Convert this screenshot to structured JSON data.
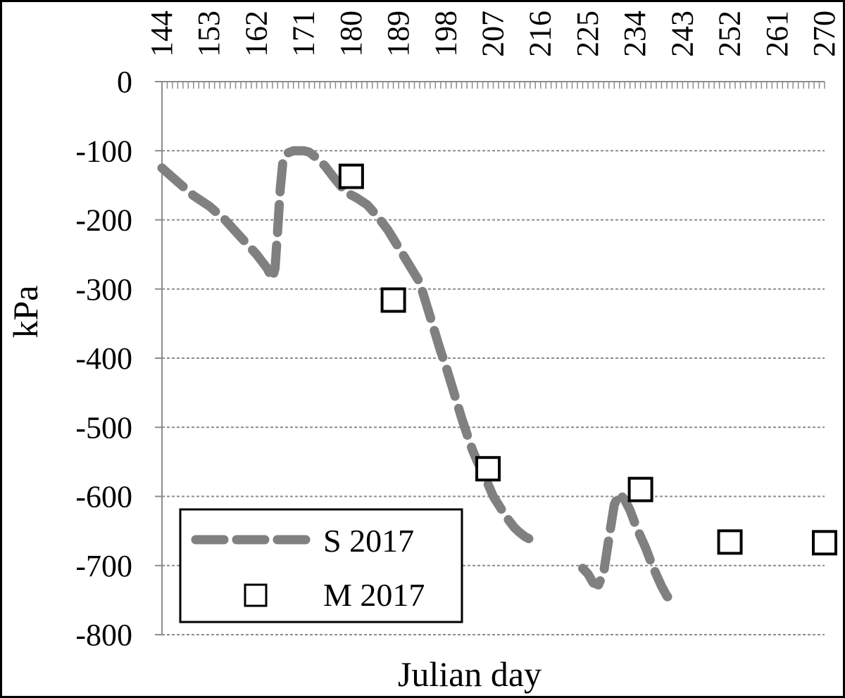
{
  "chart_data": {
    "type": "line",
    "title": "",
    "xlabel": "Julian day",
    "ylabel": "kPa",
    "x_tick_labels": [
      "144",
      "153",
      "162",
      "171",
      "180",
      "189",
      "198",
      "207",
      "216",
      "225",
      "234",
      "243",
      "252",
      "261",
      "270"
    ],
    "x_ticks": [
      144,
      153,
      162,
      171,
      180,
      189,
      198,
      207,
      216,
      225,
      234,
      243,
      252,
      261,
      270
    ],
    "xlim": [
      144,
      270
    ],
    "x_axis_position": "top",
    "y_tick_labels": [
      "0",
      "-100",
      "-200",
      "-300",
      "-400",
      "-500",
      "-600",
      "-700",
      "-800"
    ],
    "y_ticks": [
      0,
      -100,
      -200,
      -300,
      -400,
      -500,
      -600,
      -700,
      -800
    ],
    "ylim": [
      -800,
      0
    ],
    "grid": "horizontal dashed",
    "legend_position": "bottom-left",
    "series": [
      {
        "name": "S 2017",
        "kind": "dashed-line",
        "color": "#808080",
        "segments": [
          {
            "x": [
              144,
              147,
              150,
              153,
              156,
              159,
              162,
              164,
              165,
              165.5,
              166,
              166.5,
              167,
              168,
              169,
              170,
              171,
              172,
              173,
              175,
              177,
              179,
              181,
              183,
              185,
              187,
              189,
              191,
              193,
              194,
              195,
              196,
              197,
              198,
              199,
              200,
              201,
              202,
              203,
              204,
              205,
              206,
              207,
              208,
              209,
              210,
              211,
              212,
              213,
              214
            ],
            "y": [
              -125,
              -145,
              -165,
              -180,
              -200,
              -225,
              -250,
              -270,
              -285,
              -270,
              -215,
              -155,
              -115,
              -103,
              -100,
              -100,
              -100,
              -102,
              -108,
              -122,
              -142,
              -160,
              -168,
              -178,
              -195,
              -215,
              -240,
              -265,
              -290,
              -315,
              -340,
              -365,
              -390,
              -412,
              -437,
              -462,
              -487,
              -510,
              -532,
              -550,
              -565,
              -582,
              -600,
              -612,
              -624,
              -635,
              -645,
              -652,
              -658,
              -662
            ]
          },
          {
            "x": [
              224,
              225,
              226,
              227,
              228,
              229,
              230,
              231,
              232,
              233,
              234,
              235,
              236,
              237,
              238,
              239,
              240,
              241
            ],
            "y": [
              -704,
              -712,
              -725,
              -728,
              -710,
              -660,
              -612,
              -596,
              -605,
              -620,
              -640,
              -658,
              -675,
              -695,
              -713,
              -730,
              -744,
              -752
            ]
          }
        ]
      },
      {
        "name": "M 2017",
        "kind": "markers",
        "marker": "hollow-square",
        "color": "#000000",
        "x": [
          180,
          188,
          206,
          235,
          252,
          270
        ],
        "y": [
          -137,
          -316,
          -560,
          -590,
          -666,
          -667
        ]
      }
    ]
  }
}
